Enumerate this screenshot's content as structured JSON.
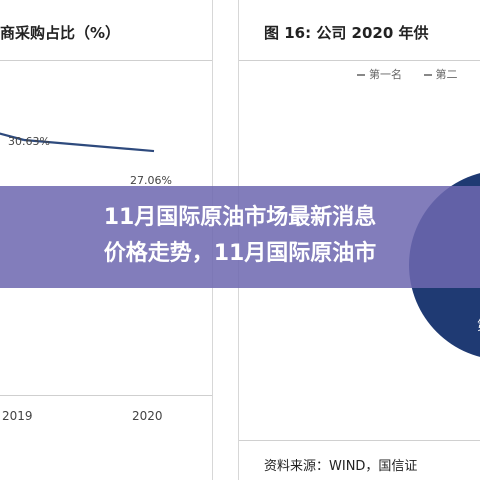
{
  "left_panel": {
    "title": "商采购占比（%）",
    "chart_data": {
      "type": "line",
      "categories": [
        "2019",
        "2020"
      ],
      "values": [
        30.63,
        27.06
      ],
      "value_labels": [
        "30.63%",
        "27.06%"
      ],
      "color": "#2e4a7d"
    }
  },
  "right_panel": {
    "title": "图 16:  公司 2020 年供",
    "legend": [
      "第一名",
      "第二"
    ],
    "pie_color": "#1f3a73",
    "pie_label": "第",
    "source": "资料来源：WIND，国信证"
  },
  "overlay": {
    "line1": "11月国际原油市场最新消息",
    "line2": "价格走势，11月国际原油市"
  }
}
